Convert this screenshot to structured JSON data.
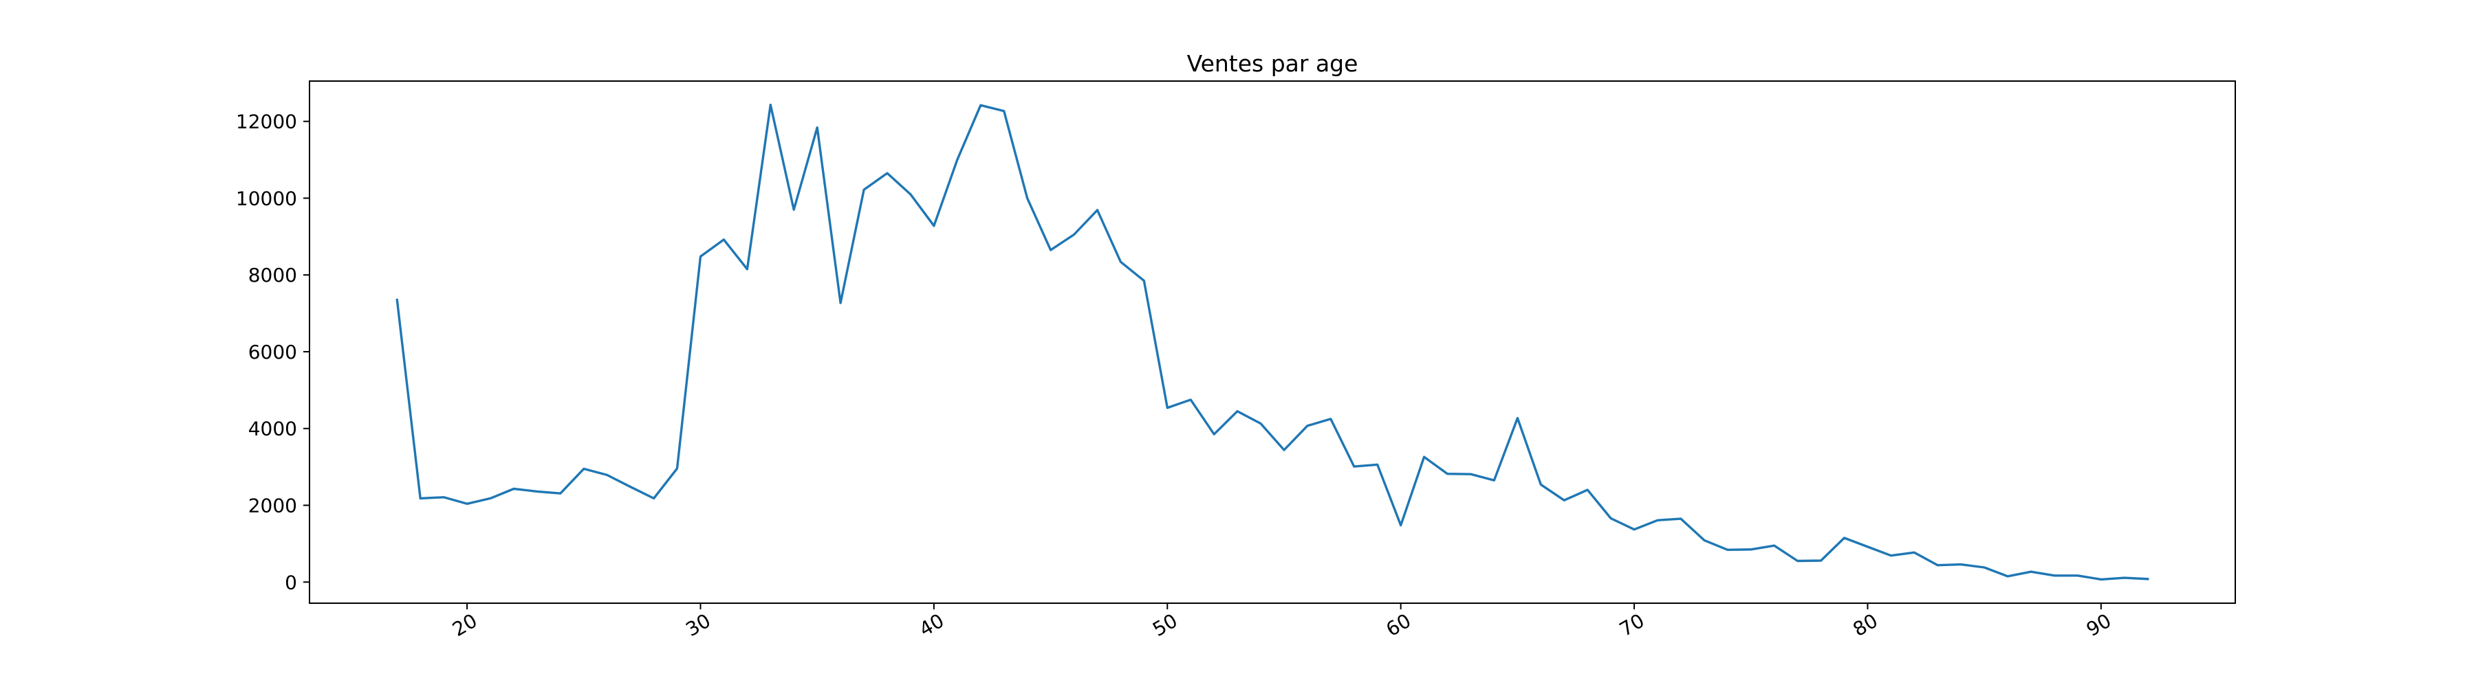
{
  "chart_data": {
    "type": "line",
    "title": "Ventes par age",
    "xlabel": "",
    "ylabel": "",
    "xlim": [
      13.25,
      95.75
    ],
    "ylim": [
      -550,
      13050
    ],
    "x_ticks": [
      20,
      30,
      40,
      50,
      60,
      70,
      80,
      90
    ],
    "x_tick_labels": [
      "20",
      "30",
      "40",
      "50",
      "60",
      "70",
      "80",
      "90"
    ],
    "y_ticks": [
      0,
      2000,
      4000,
      6000,
      8000,
      10000,
      12000
    ],
    "y_tick_labels": [
      "0",
      "2000",
      "4000",
      "6000",
      "8000",
      "10000",
      "12000"
    ],
    "grid": false,
    "legend": "none",
    "line_color": "#1f77b4",
    "series": [
      {
        "x": [
          17,
          18,
          19,
          20,
          21,
          22,
          23,
          24,
          25,
          26,
          27,
          28,
          29,
          30,
          31,
          32,
          33,
          34,
          35,
          36,
          37,
          38,
          39,
          40,
          41,
          42,
          43,
          44,
          45,
          46,
          47,
          48,
          49,
          50,
          51,
          52,
          53,
          54,
          55,
          56,
          57,
          58,
          59,
          60,
          61,
          62,
          63,
          64,
          65,
          66,
          67,
          68,
          69,
          70,
          71,
          72,
          73,
          74,
          75,
          76,
          77,
          78,
          79,
          80,
          81,
          82,
          83,
          84,
          85,
          86,
          87,
          88,
          89,
          90,
          91,
          92
        ],
        "values": [
          7350,
          2180,
          2210,
          2040,
          2180,
          2430,
          2360,
          2310,
          2950,
          2790,
          2480,
          2180,
          2960,
          8480,
          8920,
          8150,
          12430,
          9700,
          11840,
          7270,
          10220,
          10650,
          10100,
          9280,
          11000,
          12420,
          12270,
          10000,
          8650,
          9050,
          9690,
          8340,
          7850,
          4540,
          4750,
          3850,
          4450,
          4130,
          3440,
          4070,
          4250,
          3010,
          3060,
          1480,
          3260,
          2820,
          2810,
          2650,
          4270,
          2540,
          2130,
          2400,
          1660,
          1370,
          1610,
          1650,
          1090,
          840,
          850,
          950,
          550,
          560,
          1150,
          920,
          690,
          770,
          440,
          460,
          380,
          150,
          270,
          170,
          170,
          70,
          110,
          80
        ]
      }
    ]
  }
}
